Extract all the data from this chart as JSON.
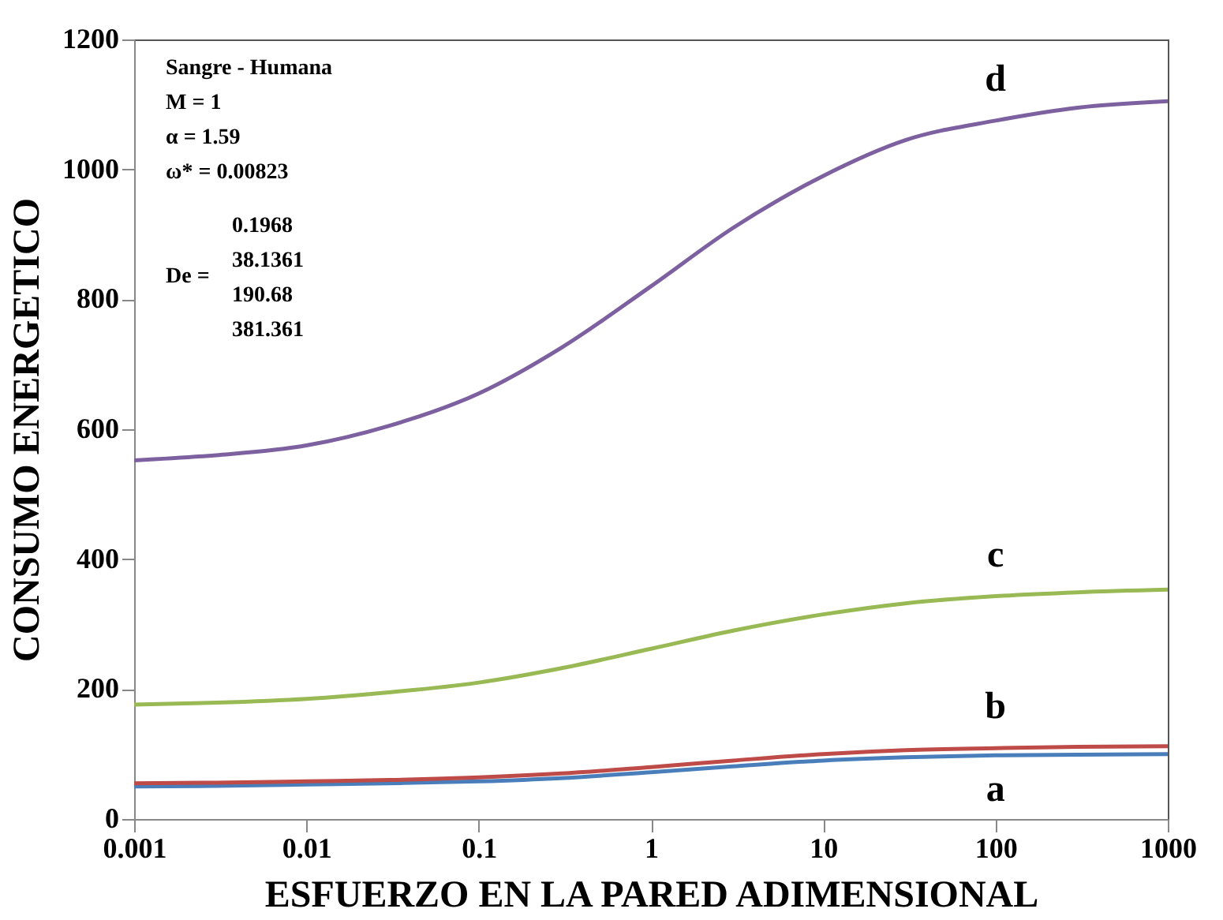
{
  "chart_data": {
    "type": "line",
    "xlabel": "ESFUERZO EN LA PARED ADIMENSIONAL",
    "ylabel": "CONSUMO ENERGETICO",
    "log": "x",
    "x": [
      0.001,
      0.003,
      0.01,
      0.03,
      0.1,
      0.3,
      1,
      3,
      10,
      30,
      100,
      300,
      1000
    ],
    "series": [
      {
        "name": "a",
        "color": "#4a7ebb",
        "values": [
          50,
          51,
          53,
          55,
          58,
          63,
          72,
          81,
          90,
          95,
          98,
          99,
          100
        ]
      },
      {
        "name": "b",
        "color": "#be4b48",
        "values": [
          55,
          56,
          58,
          60,
          64,
          70,
          80,
          90,
          100,
          106,
          109,
          111,
          112
        ]
      },
      {
        "name": "c",
        "color": "#98b954",
        "values": [
          176,
          179,
          185,
          195,
          210,
          232,
          262,
          290,
          315,
          332,
          343,
          349,
          353
        ]
      },
      {
        "name": "d",
        "color": "#7d60a0",
        "values": [
          552,
          560,
          575,
          605,
          655,
          725,
          820,
          910,
          990,
          1045,
          1075,
          1095,
          1105
        ]
      }
    ],
    "xlim": [
      0.001,
      1000
    ],
    "xticks": [
      0.001,
      0.01,
      0.1,
      1,
      10,
      100,
      1000
    ],
    "ylim": [
      0,
      1200
    ],
    "yticks": [
      0,
      200,
      400,
      600,
      800,
      1000,
      1200
    ],
    "grid": false,
    "legend": false,
    "annotations": [
      "Sangre - Humana",
      "M = 1",
      "α = 1.59",
      "ω* = 0.00823",
      "De =",
      "0.1968",
      "38.1361",
      "190.68",
      "381.361"
    ]
  }
}
